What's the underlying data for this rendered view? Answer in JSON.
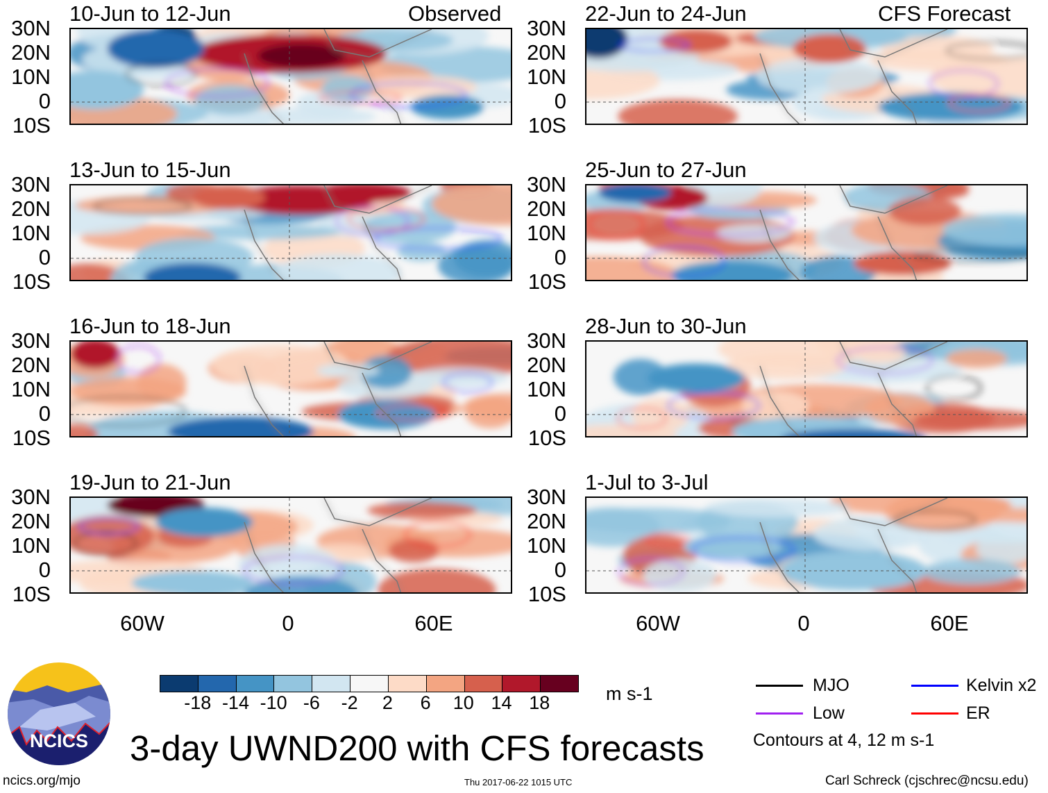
{
  "observed_label": "Observed",
  "forecast_label": "CFS Forecast",
  "panels_observed": [
    {
      "title": "10-Jun to 12-Jun"
    },
    {
      "title": "13-Jun to 15-Jun"
    },
    {
      "title": "16-Jun to 18-Jun"
    },
    {
      "title": "19-Jun to 21-Jun"
    }
  ],
  "panels_forecast": [
    {
      "title": "22-Jun to 24-Jun"
    },
    {
      "title": "25-Jun to 27-Jun"
    },
    {
      "title": "28-Jun to 30-Jun"
    },
    {
      "title": "1-Jul to 3-Jul"
    }
  ],
  "lat_labels": [
    "30N",
    "20N",
    "10N",
    "0",
    "10S"
  ],
  "lon_labels": [
    "60W",
    "0",
    "60E"
  ],
  "colorbar": {
    "colors": [
      "#0b3b70",
      "#2367ad",
      "#4594c5",
      "#93c5df",
      "#d2e6f1",
      "#f7f7f7",
      "#fddbc7",
      "#f3a582",
      "#d6604d",
      "#b1182b",
      "#67001f"
    ],
    "labels": [
      "-18",
      "-14",
      "-10",
      "-6",
      "-2",
      "2",
      "6",
      "10",
      "14",
      "18"
    ],
    "units": "m s-1"
  },
  "legend": {
    "items": [
      {
        "label": "MJO",
        "color": "#000000"
      },
      {
        "label": "Kelvin x2",
        "color": "#0000ff"
      },
      {
        "label": "Low",
        "color": "#a020f0"
      },
      {
        "label": "ER",
        "color": "#ff0000"
      }
    ],
    "contours_note": "Contours at 4, 12 m s-1"
  },
  "logo_text": "NCICS",
  "main_title": "3-day UWND200 with CFS forecasts",
  "footer": {
    "website": "ncics.org/mjo",
    "timestamp": "Thu 2017-06-22 1015 UTC",
    "author": "Carl Schreck (cjschrec@ncsu.edu)"
  }
}
